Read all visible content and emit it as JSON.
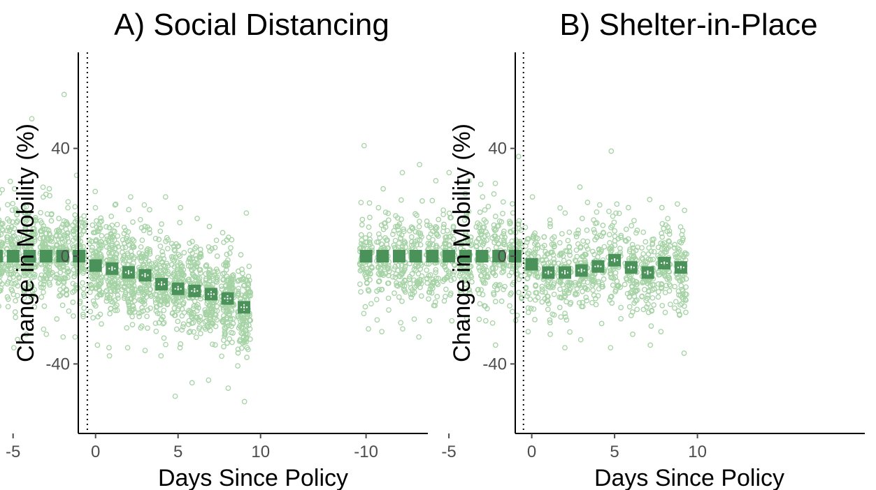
{
  "colors": {
    "jitter_points": "#a5d3a5",
    "mean_markers": "#4a915a",
    "error_bars": "#ffffff",
    "axis": "#000000",
    "tick_labels": "#4d4d4d",
    "policy_line": "#000000"
  },
  "chart_data": [
    {
      "type": "scatter",
      "title": "A) Social Distancing",
      "xlabel": "Days Since Policy",
      "ylabel": "Change in Mobility (%)",
      "xlim": [
        -10.5,
        10.2
      ],
      "ylim": [
        -68,
        77
      ],
      "x_ticks": [
        -10,
        -5,
        0,
        5,
        10
      ],
      "y_ticks": [
        -40,
        0,
        40
      ],
      "x_tick_labels": [
        "-10",
        "-5",
        "0",
        "5",
        "10"
      ],
      "y_tick_labels": [
        "-40",
        "0",
        "40"
      ],
      "policy_line_x": -0.5,
      "policy_line_style": "dotted vertical",
      "grid": false,
      "legend": "none",
      "series": [
        {
          "kind": "daily mean (filled squares) with error bars",
          "x": [
            -10,
            -9,
            -8,
            -7,
            -6,
            -5,
            -4,
            -3,
            -2,
            -1,
            0,
            1,
            2,
            3,
            4,
            5,
            6,
            7,
            8,
            9
          ],
          "y": [
            0,
            0,
            0,
            0,
            0,
            0,
            0,
            0,
            0,
            0,
            -3.5,
            -4.6,
            -6.0,
            -7.1,
            -10.4,
            -12.1,
            -12.9,
            -14.1,
            -15.7,
            -19.0
          ],
          "err": [
            0,
            0,
            0,
            0,
            0,
            0,
            0,
            0,
            0,
            0,
            0,
            0.8,
            0.8,
            0.8,
            1.0,
            1.0,
            1.0,
            1.2,
            1.2,
            1.2
          ]
        },
        {
          "kind": "per-region observations (open circles, horizontally jittered)",
          "x": [
            -10,
            -9,
            -8,
            -7,
            -6,
            -5,
            -4,
            -3,
            -2,
            -1,
            0,
            1,
            2,
            3,
            4,
            5,
            6,
            7,
            8,
            9
          ],
          "center": [
            0,
            0,
            0,
            0,
            0,
            0,
            0,
            0,
            0,
            0,
            -3.5,
            -4.6,
            -6.0,
            -7.1,
            -10.4,
            -12.1,
            -12.9,
            -14.1,
            -15.7,
            -19.0
          ],
          "spread_sd": 10.5,
          "points_per_day": 120,
          "extremes": [
            [
              -10,
              69,
              -37
            ],
            [
              -9,
              42,
              -38
            ],
            [
              -8,
              55,
              -28
            ],
            [
              -7,
              50,
              -36
            ],
            [
              -6,
              47,
              -30
            ],
            [
              -5,
              25,
              -34
            ],
            [
              -4,
              51,
              -29
            ],
            [
              -3,
              25,
              -29
            ],
            [
              -2,
              60,
              -30
            ],
            [
              -1,
              30,
              -30
            ],
            [
              0,
              24,
              -33
            ],
            [
              1,
              19,
              -37
            ],
            [
              2,
              22,
              -34
            ],
            [
              3,
              19,
              -35
            ],
            [
              4,
              22,
              -37
            ],
            [
              5,
              18,
              -52
            ],
            [
              6,
              14,
              -47
            ],
            [
              7,
              11,
              -46
            ],
            [
              8,
              7,
              -49
            ],
            [
              9,
              16,
              -54
            ]
          ]
        }
      ]
    },
    {
      "type": "scatter",
      "title": "B) Shelter-in-Place",
      "xlabel": "Days Since Policy",
      "ylabel": "Change in Mobility (%)",
      "xlim": [
        -10.5,
        10.2
      ],
      "ylim": [
        -68,
        77
      ],
      "x_ticks": [
        -10,
        -5,
        0,
        5,
        10
      ],
      "y_ticks": [
        -40,
        0,
        40
      ],
      "x_tick_labels": [
        "-10",
        "-5",
        "0",
        "5",
        "10"
      ],
      "y_tick_labels": [
        "-40",
        "0",
        "40"
      ],
      "policy_line_x": -0.5,
      "policy_line_style": "dotted vertical",
      "grid": false,
      "legend": "none",
      "series": [
        {
          "kind": "daily mean (filled squares) with error bars",
          "x": [
            -10,
            -9,
            -8,
            -7,
            -6,
            -5,
            -4,
            -3,
            -2,
            -1,
            0,
            1,
            2,
            3,
            4,
            5,
            6,
            7,
            8,
            9
          ],
          "y": [
            0,
            0,
            0,
            0,
            0,
            0,
            0,
            0,
            0,
            0,
            -3.0,
            -6.1,
            -6.1,
            -5.3,
            -3.8,
            -1.5,
            -4.2,
            -6.1,
            -2.6,
            -4.2
          ],
          "err": [
            0,
            0,
            0,
            0,
            0,
            0,
            0,
            0,
            0,
            0,
            0,
            0.7,
            0.9,
            0.7,
            0.5,
            0.7,
            0.6,
            0.8,
            0.6,
            0.6
          ]
        },
        {
          "kind": "per-region observations (open circles, horizontally jittered)",
          "x": [
            -10,
            -9,
            -8,
            -7,
            -6,
            -5,
            -4,
            -3,
            -2,
            -1,
            0,
            1,
            2,
            3,
            4,
            5,
            6,
            7,
            8,
            9
          ],
          "center": [
            0,
            0,
            0,
            0,
            0,
            0,
            0,
            0,
            0,
            0,
            -3.0,
            -6.1,
            -6.1,
            -5.3,
            -3.8,
            -1.5,
            -4.2,
            -6.1,
            -2.6,
            -4.2
          ],
          "spread_sd": 9.5,
          "points_per_day": 75,
          "extremes": [
            [
              -10,
              41,
              -27
            ],
            [
              -9,
              25,
              -28
            ],
            [
              -8,
              31,
              -27
            ],
            [
              -7,
              34,
              -30
            ],
            [
              -6,
              28,
              -24
            ],
            [
              -5,
              31,
              -24
            ],
            [
              -4,
              28,
              -23
            ],
            [
              -3,
              22,
              -24
            ],
            [
              -2,
              27,
              -33
            ],
            [
              -1,
              37,
              -22
            ],
            [
              0,
              22,
              -28
            ],
            [
              1,
              12,
              -29
            ],
            [
              2,
              16,
              -34
            ],
            [
              3,
              14,
              -31
            ],
            [
              4,
              19,
              -25
            ],
            [
              5,
              39,
              -34
            ],
            [
              6,
              18,
              -29
            ],
            [
              7,
              21,
              -33
            ],
            [
              8,
              18,
              -28
            ],
            [
              9,
              17,
              -36
            ]
          ]
        }
      ]
    }
  ]
}
